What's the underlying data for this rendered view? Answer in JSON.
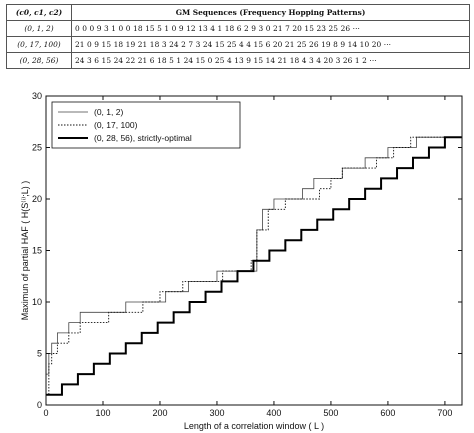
{
  "table": {
    "header_key": "(c0, c1, c2)",
    "header_title": "GM Sequences (Frequency Hopping Patterns)",
    "rows": [
      {
        "key": "(0, 1, 2)",
        "seq": "0 0 0 9 3 1 0 0 18 15 5 1 0 9 12 13 4 1 18 6 2 9 3 0 21 7 20 15 23 25 26 ···"
      },
      {
        "key": "(0, 17, 100)",
        "seq": "21 0 9 15 18 19 21 18 3 24 2 7 3 24 15 25 4 4 15 6 20 21 25 26 19 8 9 14 10 20 ···"
      },
      {
        "key": "(0, 28, 56)",
        "seq": "24 3 6 15 24 22 21 6 18 5 1 24 15 0 25 4 13 9 15 14 21 18 4 3 4 20 3 26 1 2 ···"
      }
    ]
  },
  "chart_data": {
    "type": "line",
    "title": "",
    "xlabel": "Length of a correlation window ( L )",
    "ylabel": "Maximun of partial HAF ( H(S⁽ⁱ⁾;L) )",
    "xlim": [
      0,
      730
    ],
    "ylim": [
      0,
      30
    ],
    "xticks": [
      0,
      100,
      200,
      300,
      400,
      500,
      600,
      700
    ],
    "yticks": [
      0,
      5,
      10,
      15,
      20,
      25,
      30
    ],
    "grid": false,
    "legend_position": "top-left",
    "series": [
      {
        "name": "(0, 1, 2)",
        "style": "thin-solid",
        "x": [
          0,
          5,
          10,
          20,
          40,
          60,
          90,
          110,
          140,
          180,
          210,
          250,
          300,
          360,
          370,
          380,
          400,
          430,
          450,
          470,
          500,
          520,
          540,
          560,
          600,
          620,
          650,
          700,
          729
        ],
        "y": [
          3,
          5,
          6,
          7,
          8,
          9,
          9,
          9,
          10,
          10,
          11,
          12,
          13,
          13,
          17,
          19,
          20,
          20,
          21,
          22,
          22,
          23,
          23,
          24,
          25,
          25,
          26,
          26,
          26
        ]
      },
      {
        "name": "(0, 17, 100)",
        "style": "dotted",
        "x": [
          0,
          5,
          10,
          20,
          40,
          60,
          80,
          110,
          130,
          170,
          200,
          240,
          280,
          310,
          360,
          370,
          390,
          420,
          450,
          480,
          500,
          520,
          550,
          580,
          610,
          640,
          729
        ],
        "y": [
          1,
          4,
          5,
          6,
          7,
          8,
          8,
          9,
          9,
          10,
          11,
          12,
          12,
          13,
          14,
          17,
          19,
          20,
          20,
          21,
          22,
          23,
          23,
          24,
          25,
          26,
          26
        ]
      },
      {
        "name": "(0, 28, 56), strictly-optimal",
        "style": "thick-solid",
        "x": [
          0,
          28,
          56,
          84,
          112,
          140,
          168,
          196,
          224,
          252,
          280,
          308,
          336,
          364,
          392,
          420,
          448,
          476,
          504,
          532,
          560,
          588,
          616,
          644,
          672,
          700,
          729
        ],
        "y": [
          1,
          2,
          3,
          4,
          5,
          6,
          7,
          8,
          9,
          10,
          11,
          12,
          13,
          14,
          15,
          16,
          17,
          18,
          19,
          20,
          21,
          22,
          23,
          24,
          25,
          26,
          26
        ]
      }
    ]
  }
}
